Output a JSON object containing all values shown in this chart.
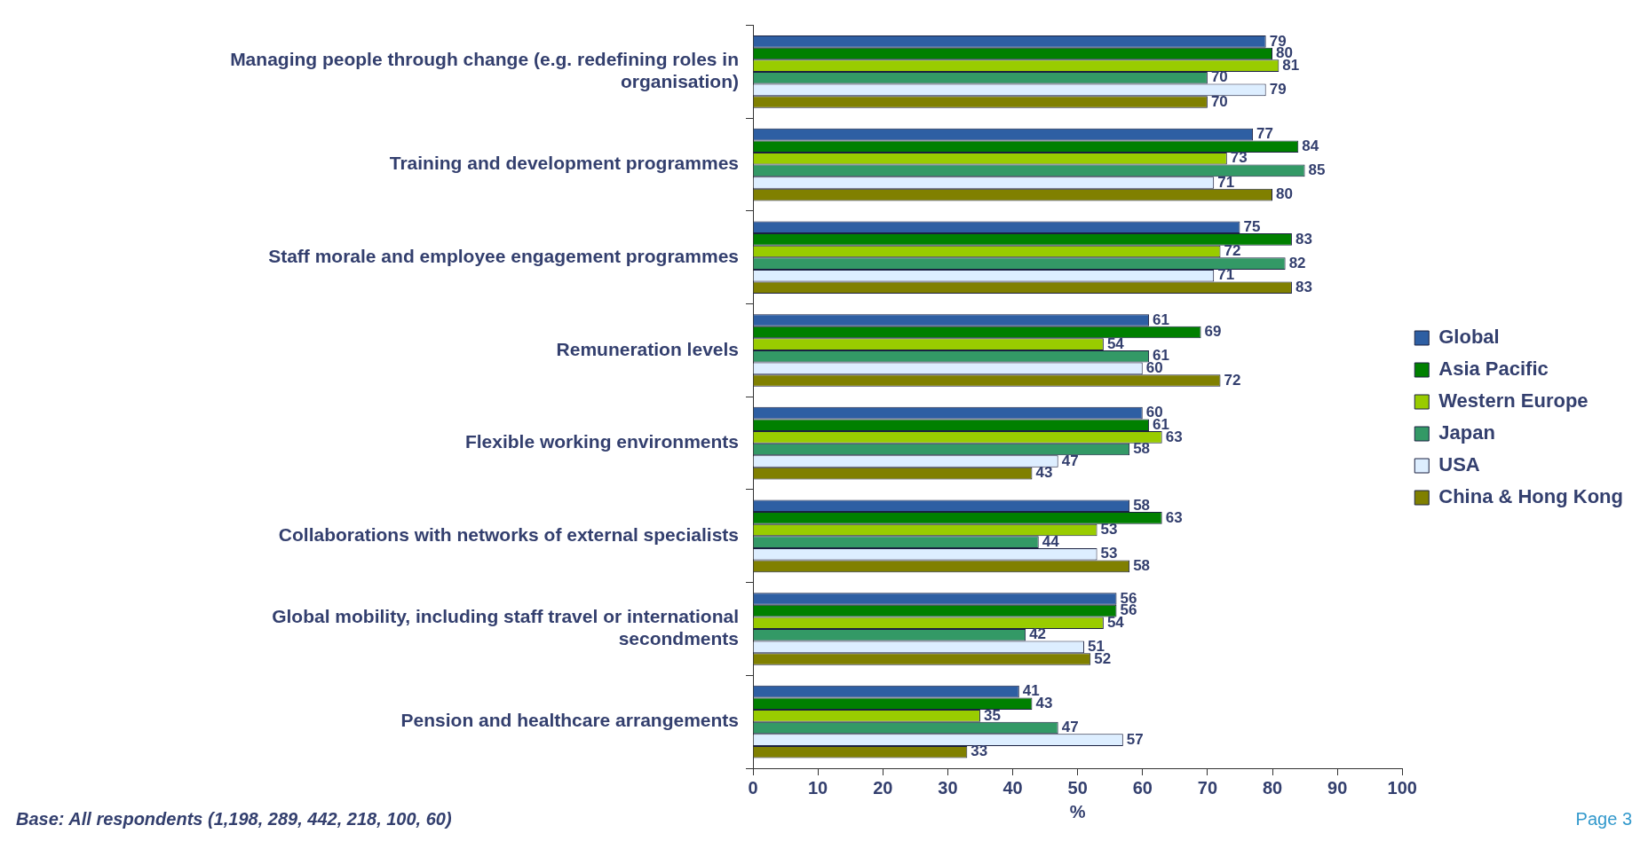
{
  "chart_data": {
    "type": "bar",
    "orientation": "horizontal",
    "categories": [
      "Managing people through change (e.g. redefining roles in organisation)",
      "Training and development programmes",
      "Staff morale and employee engagement programmes",
      "Remuneration levels",
      "Flexible working environments",
      "Collaborations with networks of external specialists",
      "Global mobility, including staff travel or international secondments",
      "Pension and healthcare arrangements"
    ],
    "series": [
      {
        "name": "Global",
        "color": "#2e5fa3",
        "values": [
          79,
          77,
          75,
          61,
          60,
          58,
          56,
          41
        ]
      },
      {
        "name": "Asia Pacific",
        "color": "#008000",
        "values": [
          80,
          84,
          83,
          69,
          61,
          63,
          56,
          43
        ]
      },
      {
        "name": "Western Europe",
        "color": "#99cc00",
        "values": [
          81,
          73,
          72,
          54,
          63,
          53,
          54,
          35
        ]
      },
      {
        "name": "Japan",
        "color": "#339966",
        "values": [
          70,
          85,
          82,
          61,
          58,
          44,
          42,
          47
        ]
      },
      {
        "name": "USA",
        "color": "#ddeeff",
        "values": [
          79,
          71,
          71,
          60,
          47,
          53,
          51,
          57
        ]
      },
      {
        "name": "China & Hong Kong",
        "color": "#808000",
        "values": [
          70,
          80,
          83,
          72,
          43,
          58,
          52,
          33
        ]
      }
    ],
    "xlim": [
      0,
      100
    ],
    "xticks": [
      0,
      10,
      20,
      30,
      40,
      50,
      60,
      70,
      80,
      90,
      100
    ],
    "xlabel": "%",
    "grid": false,
    "legend": "right",
    "data_labels": true,
    "annotations": [
      "Base: All respondents (1,198, 289, 442, 218, 100, 60)",
      "Page 3"
    ]
  }
}
